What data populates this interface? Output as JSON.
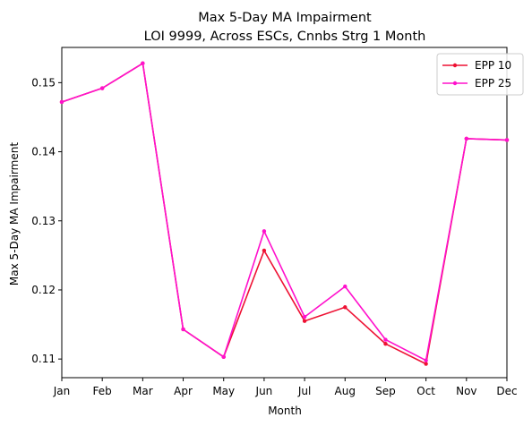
{
  "chart_data": {
    "type": "line",
    "title": "Max 5-Day MA Impairment",
    "subtitle": "LOI 9999, Across ESCs, Cnnbs Strg 1 Month",
    "xlabel": "Month",
    "ylabel": "Max 5-Day MA Impairment",
    "categories": [
      "Jan",
      "Feb",
      "Mar",
      "Apr",
      "May",
      "Jun",
      "Jul",
      "Aug",
      "Sep",
      "Oct",
      "Nov",
      "Dec"
    ],
    "ylim": [
      0.1073,
      0.1551
    ],
    "yticks": [
      "0.11",
      "0.12",
      "0.13",
      "0.14",
      "0.15"
    ],
    "grid": false,
    "legend_position": "top-right",
    "series": [
      {
        "name": "EPP 10",
        "color": "#ee1133",
        "values": [
          0.1472,
          0.1492,
          0.1528,
          0.1143,
          0.1103,
          0.1257,
          0.1155,
          0.1175,
          0.1122,
          0.1093,
          0.1419,
          0.1417
        ]
      },
      {
        "name": "EPP 25",
        "color": "#ff11cc",
        "values": [
          0.1472,
          0.1492,
          0.1528,
          0.1143,
          0.1103,
          0.1285,
          0.1161,
          0.1205,
          0.1128,
          0.1098,
          0.1419,
          0.1417
        ]
      }
    ]
  }
}
